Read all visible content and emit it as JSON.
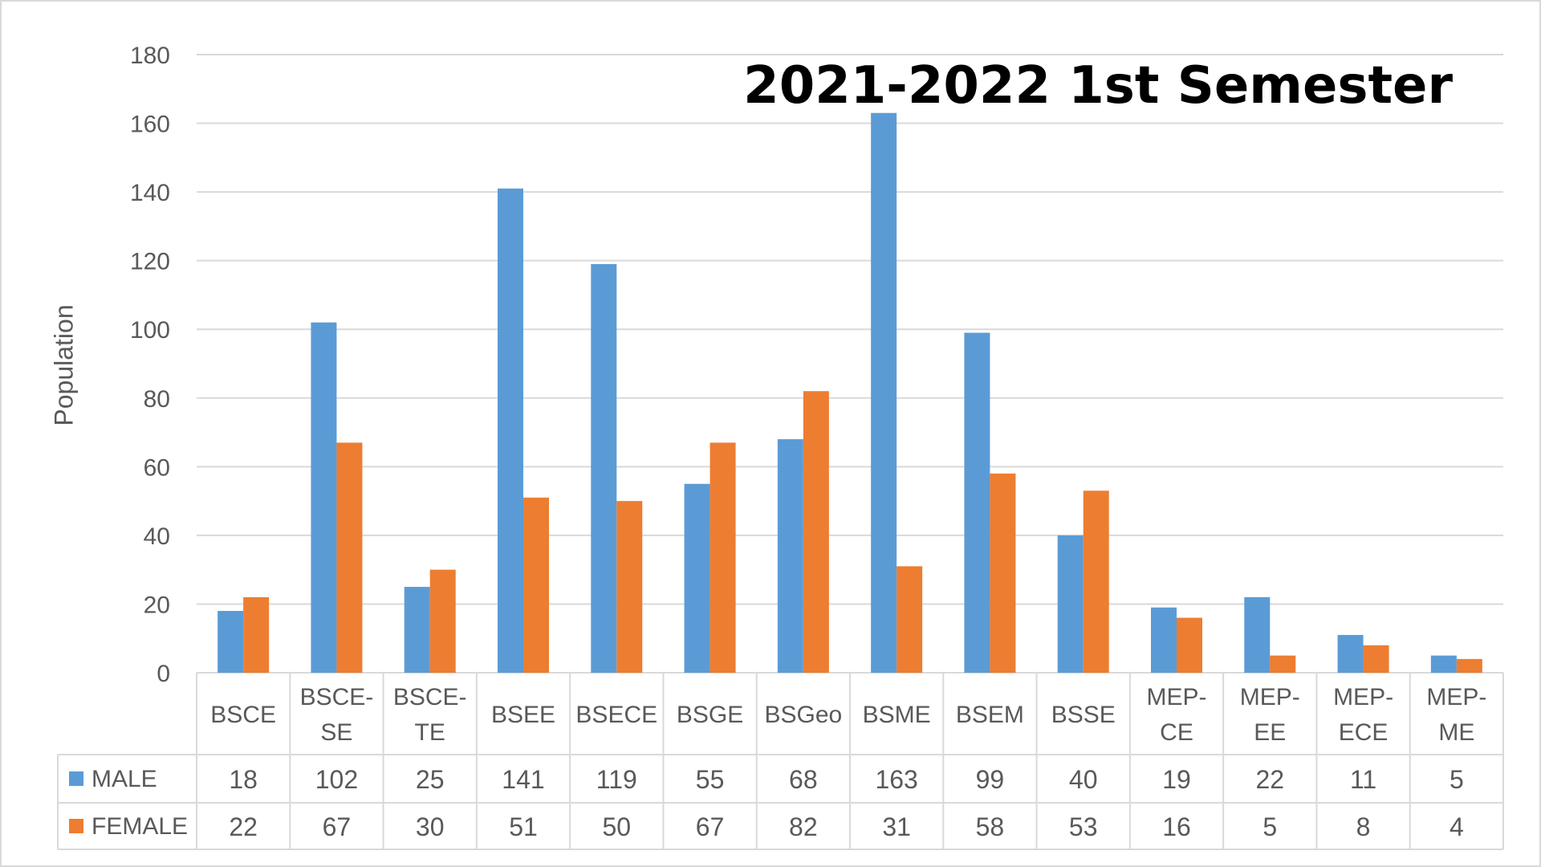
{
  "chart_data": {
    "type": "bar",
    "title": "2021-2022 1st Semester",
    "ylabel": "Population",
    "xlabel": "",
    "ylim": [
      0,
      180
    ],
    "yticks": [
      0,
      20,
      40,
      60,
      80,
      100,
      120,
      140,
      160,
      180
    ],
    "grid": true,
    "legend": "data-table",
    "categories": [
      "BSCE",
      "BSCE-SE",
      "BSCE-TE",
      "BSEE",
      "BSECE",
      "BSGE",
      "BSGeo",
      "BSME",
      "BSEM",
      "BSSE",
      "MEP-CE",
      "MEP-EE",
      "MEP-ECE",
      "MEP-ME"
    ],
    "series": [
      {
        "name": "MALE",
        "color": "#5b9bd5",
        "values": [
          18,
          102,
          25,
          141,
          119,
          55,
          68,
          163,
          99,
          40,
          19,
          22,
          11,
          5
        ]
      },
      {
        "name": "FEMALE",
        "color": "#ed7d31",
        "values": [
          22,
          67,
          30,
          51,
          50,
          67,
          82,
          31,
          58,
          53,
          16,
          5,
          8,
          4
        ]
      }
    ]
  }
}
